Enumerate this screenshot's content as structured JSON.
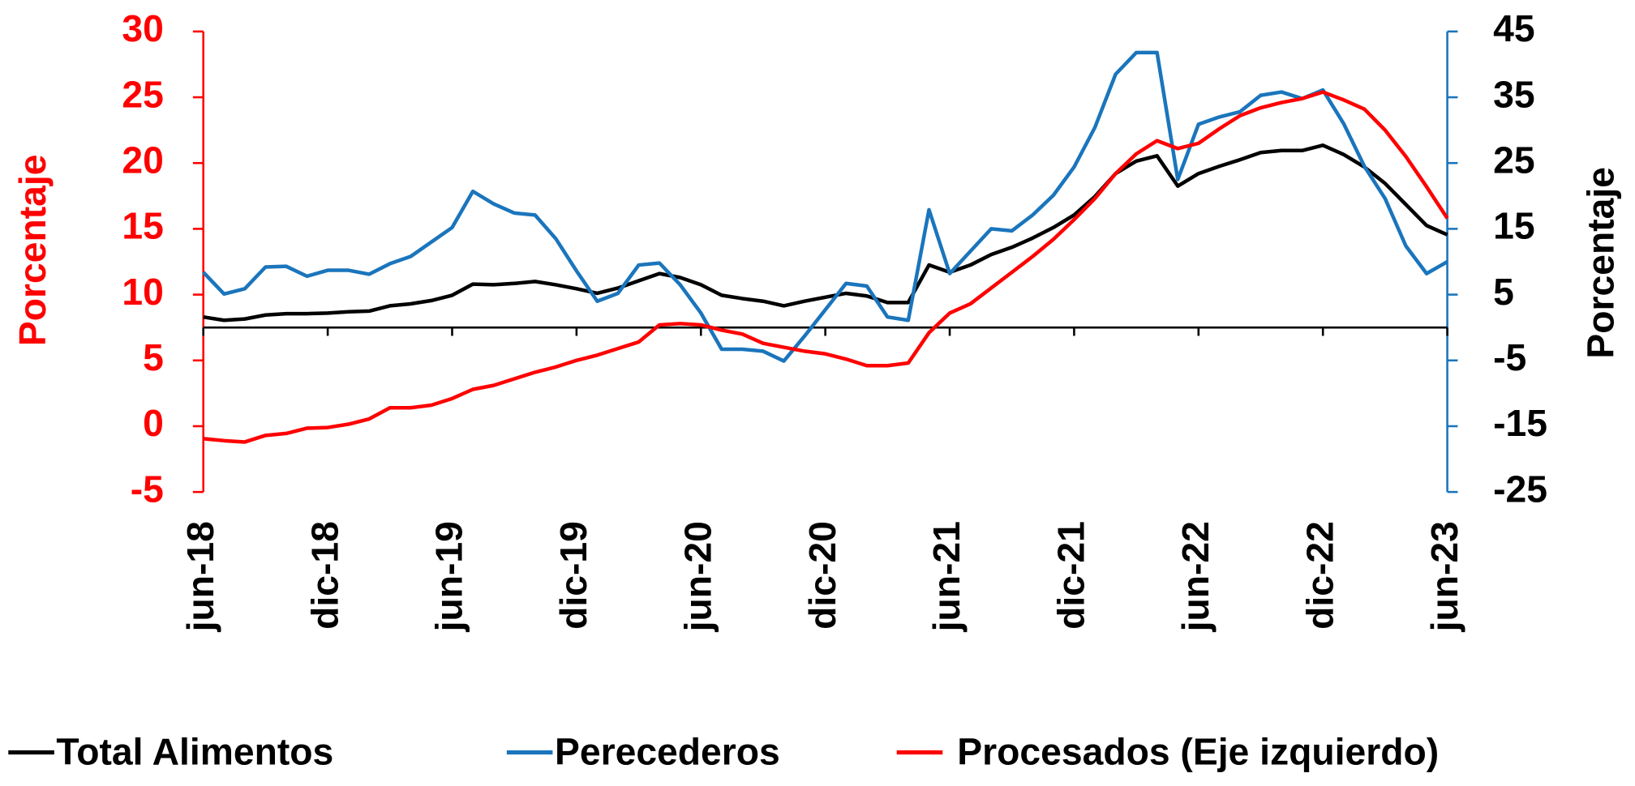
{
  "chart_data": {
    "type": "line",
    "y_label": "Porcentaje",
    "y2_label": "Porcentaje",
    "categories": [
      "jun-18",
      null,
      null,
      null,
      null,
      null,
      "dic-18",
      null,
      null,
      null,
      null,
      null,
      "jun-19",
      null,
      null,
      null,
      null,
      null,
      "dic-19",
      null,
      null,
      null,
      null,
      null,
      "jun-20",
      null,
      null,
      null,
      null,
      null,
      "dic-20",
      null,
      null,
      null,
      null,
      null,
      "jun-21",
      null,
      null,
      null,
      null,
      null,
      "dic-21",
      null,
      null,
      null,
      null,
      null,
      "jun-22",
      null,
      null,
      null,
      null,
      null,
      "dic-22",
      null,
      null,
      null,
      null,
      null,
      "jun-23"
    ],
    "series": [
      {
        "name": "Total Alimentos",
        "color": "#000000",
        "axis": "y2",
        "values": [
          1.6,
          1.1,
          1.3,
          1.9,
          2.1,
          2.1,
          2.2,
          2.4,
          2.5,
          3.3,
          3.6,
          4.1,
          4.9,
          6.6,
          6.5,
          6.7,
          7.0,
          6.5,
          5.9,
          5.2,
          6.0,
          7.1,
          8.2,
          7.6,
          6.5,
          4.9,
          4.4,
          4.0,
          3.3,
          4.0,
          4.6,
          5.2,
          4.8,
          3.8,
          3.8,
          9.5,
          8.4,
          9.5,
          11.1,
          12.2,
          13.6,
          15.2,
          17.1,
          19.9,
          23.4,
          25.3,
          26.1,
          21.5,
          23.4,
          24.5,
          25.5,
          26.6,
          26.9,
          26.9,
          27.7,
          26.3,
          24.4,
          21.9,
          18.7,
          15.5,
          14.1
        ]
      },
      {
        "name": "Perecederos",
        "color": "#1a75bc",
        "axis": "y2",
        "values": [
          8.4,
          5.1,
          5.9,
          9.2,
          9.3,
          7.8,
          8.7,
          8.7,
          8.1,
          9.7,
          10.8,
          13.0,
          15.2,
          20.7,
          18.8,
          17.4,
          17.1,
          13.5,
          8.6,
          4.0,
          5.2,
          9.5,
          9.8,
          6.5,
          2.2,
          -3.3,
          -3.3,
          -3.6,
          -5.1,
          -1.3,
          2.7,
          6.7,
          6.3,
          1.6,
          1.1,
          17.9,
          8.2,
          11.6,
          15.0,
          14.7,
          17.1,
          20.1,
          24.4,
          30.4,
          38.5,
          41.8,
          41.8,
          22.5,
          30.9,
          32.0,
          32.8,
          35.3,
          35.8,
          34.8,
          36.1,
          31.0,
          24.5,
          19.6,
          12.4,
          8.2,
          10.0
        ]
      },
      {
        "name": "Procesados (Eje izquierdo)",
        "color": "#ff0000",
        "axis": "y",
        "values": [
          -0.95,
          -1.1,
          -1.2,
          -0.7,
          -0.55,
          -0.15,
          -0.1,
          0.15,
          0.55,
          1.4,
          1.4,
          1.6,
          2.1,
          2.8,
          3.1,
          3.6,
          4.1,
          4.5,
          5.0,
          5.4,
          5.9,
          6.4,
          7.7,
          7.8,
          7.7,
          7.3,
          7.0,
          6.3,
          6.0,
          5.7,
          5.5,
          5.1,
          4.6,
          4.6,
          4.8,
          7.1,
          8.6,
          9.3,
          10.5,
          11.7,
          12.9,
          14.2,
          15.7,
          17.3,
          19.2,
          20.7,
          21.7,
          21.1,
          21.5,
          22.6,
          23.6,
          24.2,
          24.6,
          24.9,
          25.4,
          24.8,
          24.1,
          22.5,
          20.5,
          18.2,
          15.8
        ]
      }
    ],
    "ylim": [
      -5,
      30
    ],
    "yticks": [
      -5,
      0,
      5,
      10,
      15,
      20,
      25,
      30
    ],
    "y_color": "#ff0000",
    "y2lim": [
      -25,
      45
    ],
    "y2ticks": [
      -25,
      -15,
      -5,
      5,
      15,
      25,
      35,
      45
    ],
    "y2_color": "#1a75bc",
    "legend": "bottom"
  }
}
